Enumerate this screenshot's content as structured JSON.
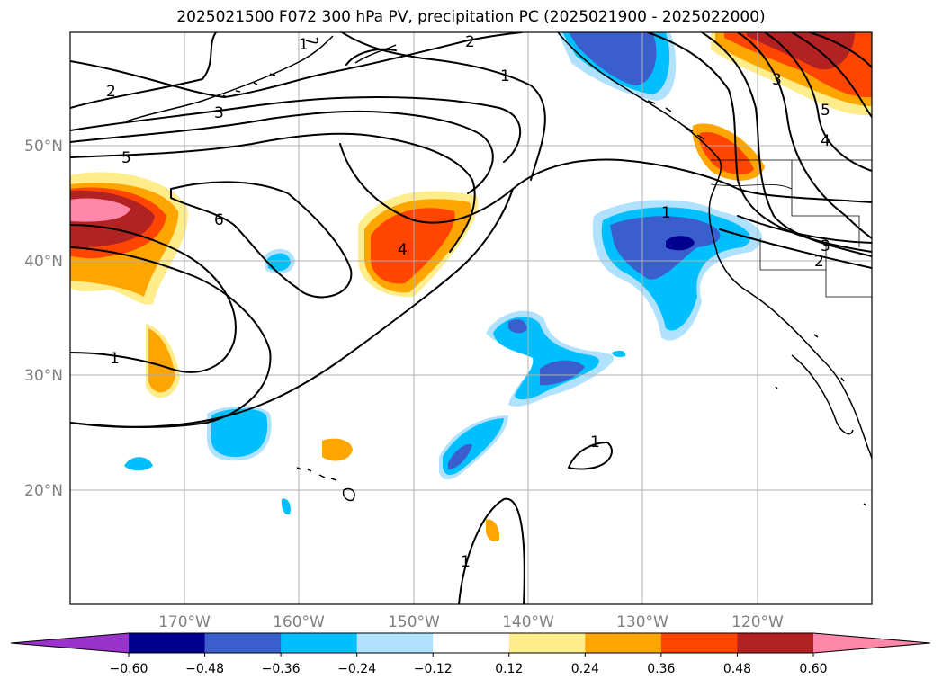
{
  "title": "2025021500 F072 300 hPa PV, precipitation PC (2025021900 - 2025022000)",
  "latitude_labels": [
    "50°N",
    "40°N",
    "30°N",
    "20°N"
  ],
  "longitude_labels": [
    "170°W",
    "160°W",
    "150°W",
    "140°W",
    "130°W",
    "120°W"
  ],
  "colorbar": {
    "ticks": [
      "−0.60",
      "−0.48",
      "−0.36",
      "−0.24",
      "−0.12",
      "0.12",
      "0.24",
      "0.36",
      "0.48",
      "0.60"
    ],
    "colors": [
      "#9933cc",
      "#000090",
      "#3a5fcd",
      "#00bfff",
      "#b0e2ff",
      "#ffffff",
      "#ffec8b",
      "#ffa500",
      "#ff4500",
      "#b22222",
      "#ff88aa"
    ]
  },
  "contour_labels": [
    "1",
    "2",
    "2",
    "1",
    "3",
    "5",
    "6",
    "4",
    "1",
    "1",
    "3",
    "2",
    "3",
    "4",
    "5",
    "1",
    "1"
  ]
}
